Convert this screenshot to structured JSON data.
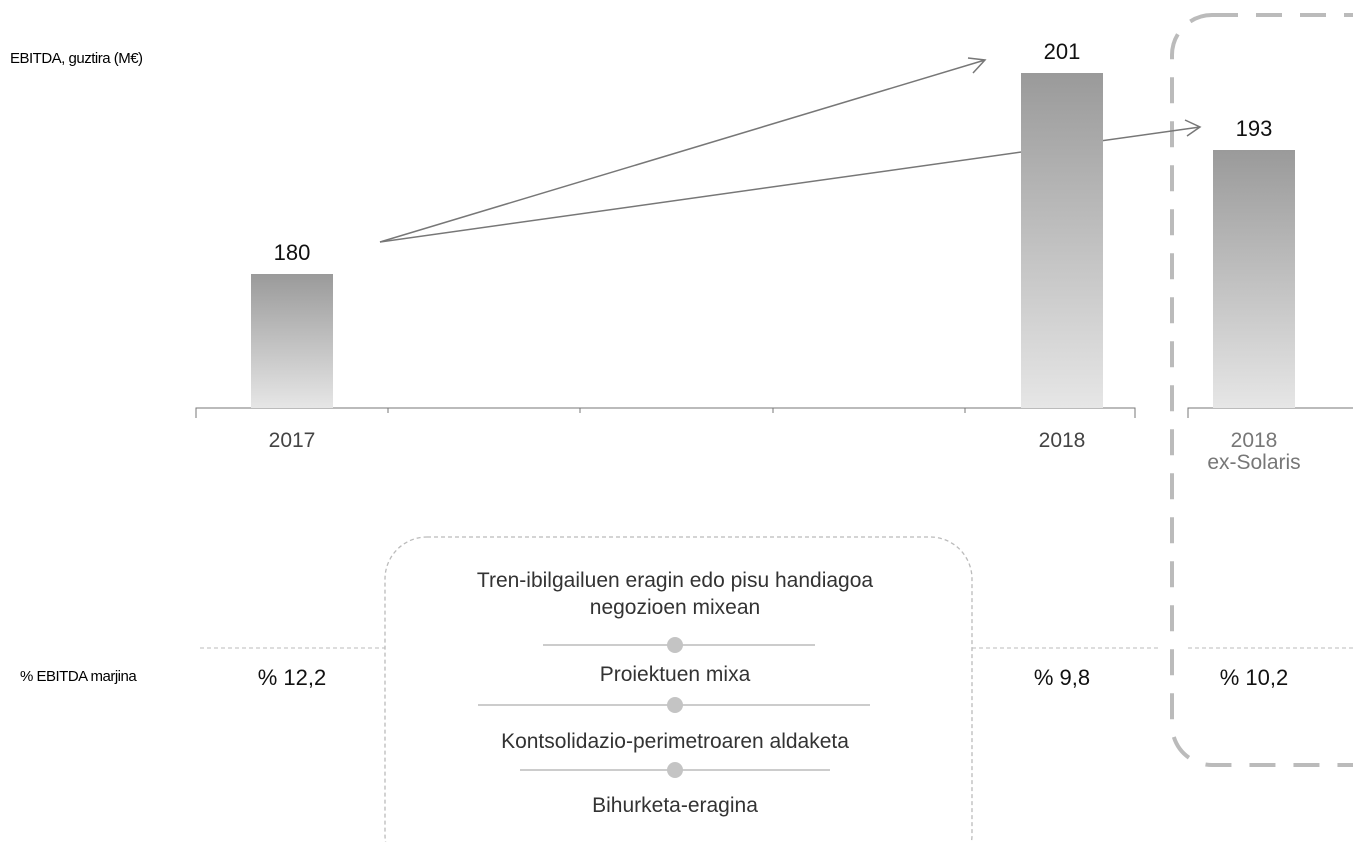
{
  "chart_data": {
    "type": "bar",
    "ylabel": "EBITDA, guztira (M€)",
    "categories": [
      "2017",
      "2018",
      "2018\nex-Solaris"
    ],
    "values": [
      180,
      201,
      193
    ],
    "ylim": [
      166,
      202
    ],
    "color_top": "#9a9a9a",
    "color_bottom": "#e6e6e6",
    "margin_label": "% EBITDA marjina",
    "margins": [
      12.2,
      9.8,
      10.2
    ],
    "margin_labels": [
      "% 12,2",
      "% 9,8",
      "% 10,2"
    ],
    "factors": [
      "Tren-ibilgailuen eragin edo pisu handiagoa negozioen mixean",
      "Proiektuen mixa",
      "Kontsolidazio-perimetroaren aldaketa",
      "Bihurketa-eragina"
    ]
  }
}
